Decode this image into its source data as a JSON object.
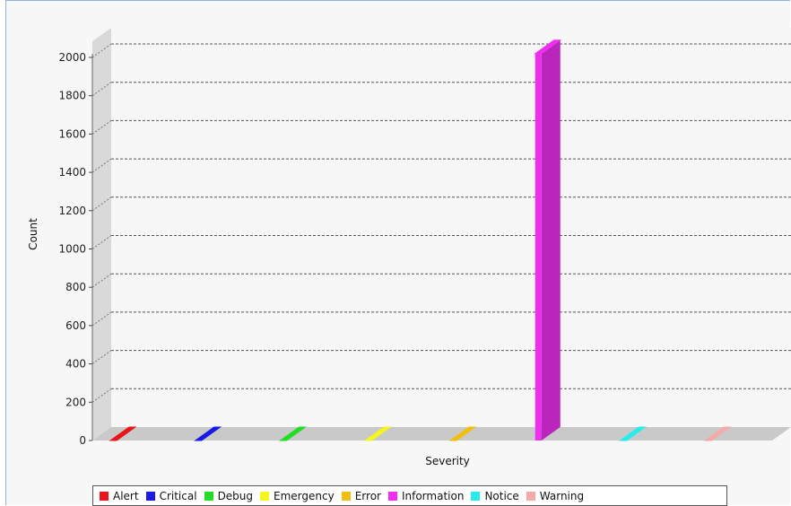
{
  "chart_data": {
    "type": "bar",
    "xlabel": "Severity",
    "ylabel": "Count",
    "categories": [
      "Alert",
      "Critical",
      "Debug",
      "Emergency",
      "Error",
      "Information",
      "Notice",
      "Warning"
    ],
    "values": [
      0,
      0,
      0,
      0,
      0,
      2020,
      0,
      0
    ],
    "colors": [
      "#e8151b",
      "#1a1ae8",
      "#22dd22",
      "#f5f51f",
      "#f2be0e",
      "#ee2ff0",
      "#26ecee",
      "#f4aaa6"
    ],
    "ylim": [
      0,
      2100
    ],
    "yticks": [
      0,
      200,
      400,
      600,
      800,
      1000,
      1200,
      1400,
      1600,
      1800,
      2000
    ],
    "grid": true,
    "legend": "bottom",
    "style": "3d"
  }
}
